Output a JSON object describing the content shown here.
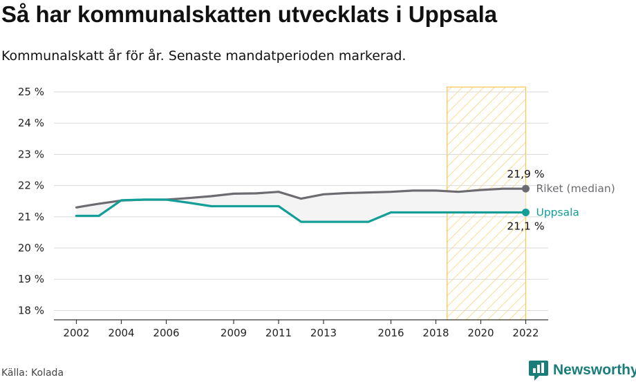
{
  "title": "Så har kommunalskatten utvecklats i Uppsala",
  "subtitle": "Kommunalskatt år för år. Senaste mandatperioden markerad.",
  "source": "Källa: Kolada",
  "brand": {
    "name": "Newsworthy",
    "icon": "newsworthy-chart-logo-icon",
    "color": "#1a7d79"
  },
  "chart_data": {
    "type": "line",
    "x": [
      2002,
      2003,
      2004,
      2005,
      2006,
      2007,
      2008,
      2009,
      2010,
      2011,
      2012,
      2013,
      2014,
      2015,
      2016,
      2017,
      2018,
      2019,
      2020,
      2021,
      2022
    ],
    "series": [
      {
        "name": "Riket (median)",
        "color": "#6e6b70",
        "values": [
          21.3,
          21.42,
          21.52,
          21.55,
          21.55,
          21.6,
          21.66,
          21.74,
          21.75,
          21.8,
          21.58,
          21.72,
          21.76,
          21.78,
          21.8,
          21.84,
          21.84,
          21.8,
          21.86,
          21.9,
          21.9
        ],
        "end_value_label": "21,9 %"
      },
      {
        "name": "Uppsala",
        "color": "#139e97",
        "values": [
          21.03,
          21.03,
          21.53,
          21.55,
          21.55,
          21.45,
          21.34,
          21.34,
          21.34,
          21.34,
          20.84,
          20.84,
          20.84,
          20.84,
          21.14,
          21.14,
          21.14,
          21.14,
          21.14,
          21.14,
          21.14
        ],
        "end_value_label": "21,1 %"
      }
    ],
    "y_ticks": [
      18,
      19,
      20,
      21,
      22,
      23,
      24,
      25
    ],
    "y_tick_labels": [
      "18 %",
      "19 %",
      "20 %",
      "21 %",
      "22 %",
      "23 %",
      "24 %",
      "25 %"
    ],
    "x_ticks": [
      2002,
      2004,
      2006,
      2009,
      2011,
      2013,
      2016,
      2018,
      2020,
      2022
    ],
    "x_tick_labels": [
      "2002",
      "2004",
      "2006",
      "2009",
      "2011",
      "2013",
      "2016",
      "2018",
      "2020",
      "2022"
    ],
    "ylim": [
      17.7,
      25.2
    ],
    "xlim": [
      2001.0,
      2023.0
    ],
    "highlight": {
      "from": 2018.5,
      "to": 2022,
      "color": "#f6c54c",
      "pattern": "diagonal-hatch"
    },
    "gap_fill_color": "#f4f4f5",
    "grid": true,
    "xlabel": "",
    "ylabel": ""
  }
}
